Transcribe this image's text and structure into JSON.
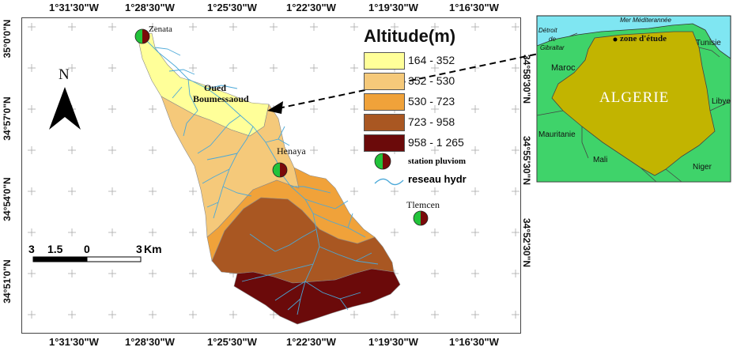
{
  "coords": {
    "top": [
      "1°31'30\"W",
      "1°28'30\"W",
      "1°25'30\"W",
      "1°22'30\"W",
      "1°19'30\"W",
      "1°16'30\"W"
    ],
    "bottom": [
      "1°31'30\"W",
      "1°28'30\"W",
      "1°25'30\"W",
      "1°22'30\"W",
      "1°19'30\"W",
      "1°16'30\"W"
    ],
    "left": [
      "35°0'0\"N",
      "34°57'0\"N",
      "34°54'0\"N",
      "34°51'0\"N"
    ],
    "right": [
      "34°58'30\"N",
      "34°55'30\"N",
      "34°52'30\"N"
    ]
  },
  "north": "N",
  "legend": {
    "title": "Altitude(m)",
    "classes": [
      {
        "label": "164 - 352",
        "color": "#ffff99"
      },
      {
        "label": "352 - 530",
        "color": "#f5c97a"
      },
      {
        "label": "530 - 723",
        "color": "#f0a23a"
      },
      {
        "label": "723 - 958",
        "color": "#a95722"
      },
      {
        "label": "958 - 1 265",
        "color": "#6b0a0a"
      }
    ],
    "station_label": "station pluviom",
    "river_label": "reseau hydr"
  },
  "places": {
    "zenata": "Zenata",
    "oued": "Oued",
    "boumessaoud": "Boumessaoud",
    "hennaya": "Henaya",
    "tlemcen": "Tlemcen"
  },
  "scalebar": {
    "t0": "3",
    "t1": "1.5",
    "t2": "0",
    "t3": "3",
    "unit": "Km"
  },
  "inset": {
    "sea": "Mer Méditerannée",
    "strait": [
      "Détroit",
      "de",
      "Gibraltar"
    ],
    "zone": "zone d'étude",
    "algeria": "ALGERIE",
    "maroc": "Maroc",
    "tunisie": "Tunisie",
    "libye": "Libye",
    "mauritanie": "Mauritanie",
    "mali": "Mali",
    "niger": "Niger",
    "colors": {
      "sea": "#7fe6f2",
      "land": "#3fd36a",
      "algeria": "#c2b400"
    }
  },
  "colors": {
    "river": "#4aa8d8",
    "halo": "#c8d4ff"
  }
}
